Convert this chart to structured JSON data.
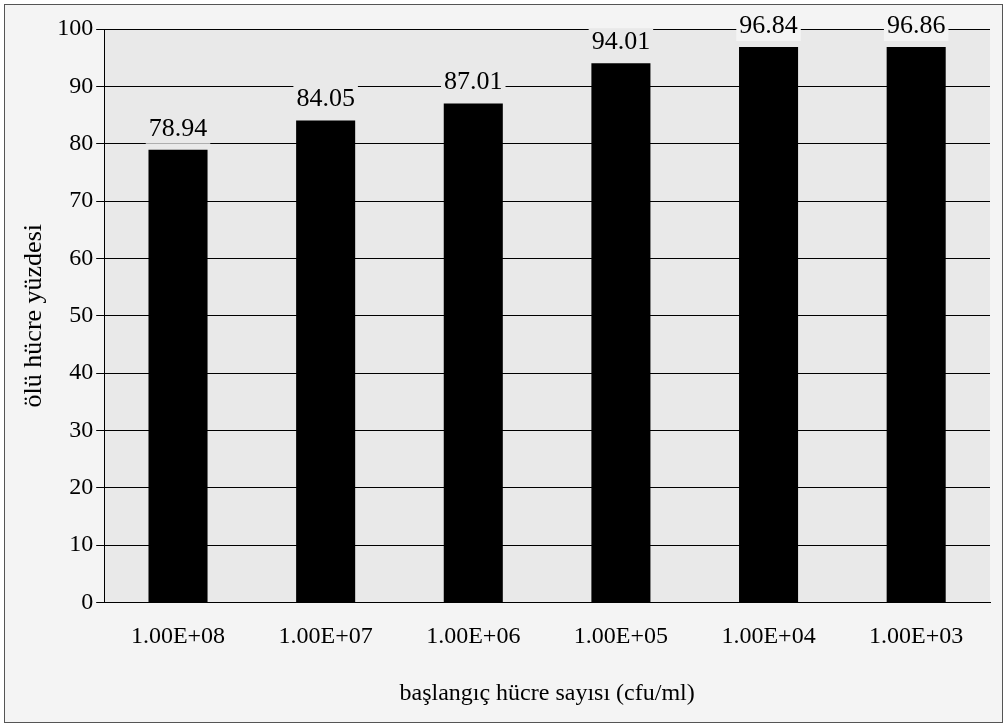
{
  "chart_data": {
    "type": "bar",
    "xlabel": "başlangıç hücre sayısı (cfu/ml)",
    "ylabel": "ölü hücre yüzdesi",
    "categories": [
      "1.00E+08",
      "1.00E+07",
      "1.00E+06",
      "1.00E+05",
      "1.00E+04",
      "1.00E+03"
    ],
    "values": [
      78.94,
      84.05,
      87.01,
      94.01,
      96.84,
      96.86
    ],
    "color": "#000000",
    "ylim": [
      0,
      100
    ],
    "yticks": [
      0,
      10,
      20,
      30,
      40,
      50,
      60,
      70,
      80,
      90,
      100
    ],
    "grid": "y",
    "data_labels": true,
    "legend": false
  }
}
